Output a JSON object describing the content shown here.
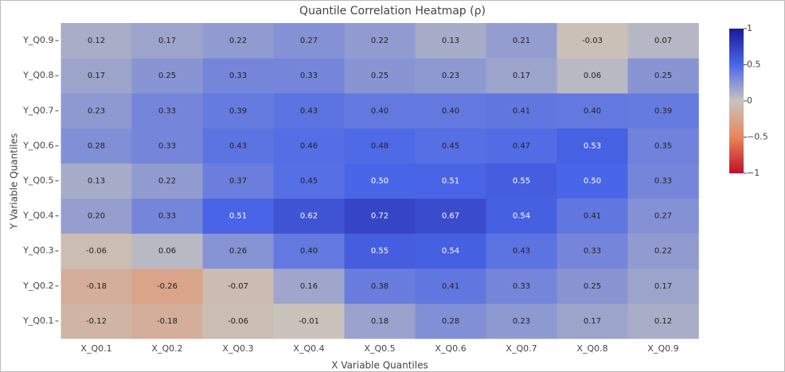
{
  "chart_data": {
    "type": "heatmap",
    "title": "Quantile Correlation Heatmap (ρ)",
    "x_label": "X Variable Quantiles",
    "y_label": "Y Variable Quantiles",
    "x_categories": [
      "X_Q0.1",
      "X_Q0.2",
      "X_Q0.3",
      "X_Q0.4",
      "X_Q0.5",
      "X_Q0.6",
      "X_Q0.7",
      "X_Q0.8",
      "X_Q0.9"
    ],
    "y_categories": [
      "Y_Q0.1",
      "Y_Q0.2",
      "Y_Q0.3",
      "Y_Q0.4",
      "Y_Q0.5",
      "Y_Q0.6",
      "Y_Q0.7",
      "Y_Q0.8",
      "Y_Q0.9"
    ],
    "z": [
      [
        -0.12,
        -0.18,
        -0.06,
        -0.01,
        0.18,
        0.28,
        0.23,
        0.17,
        0.12
      ],
      [
        -0.18,
        -0.26,
        -0.07,
        0.16,
        0.38,
        0.41,
        0.33,
        0.25,
        0.17
      ],
      [
        -0.06,
        0.06,
        0.26,
        0.4,
        0.55,
        0.54,
        0.43,
        0.33,
        0.22
      ],
      [
        0.2,
        0.33,
        0.51,
        0.62,
        0.72,
        0.67,
        0.54,
        0.41,
        0.27
      ],
      [
        0.13,
        0.22,
        0.37,
        0.45,
        0.5,
        0.51,
        0.55,
        0.5,
        0.33
      ],
      [
        0.28,
        0.33,
        0.43,
        0.46,
        0.48,
        0.45,
        0.47,
        0.53,
        0.35
      ],
      [
        0.23,
        0.33,
        0.39,
        0.43,
        0.4,
        0.4,
        0.41,
        0.4,
        0.39
      ],
      [
        0.17,
        0.25,
        0.33,
        0.33,
        0.25,
        0.23,
        0.17,
        0.06,
        0.25
      ],
      [
        0.12,
        0.17,
        0.22,
        0.27,
        0.22,
        0.13,
        0.21,
        -0.03,
        0.07
      ]
    ],
    "value_labels": [
      [
        "-0.12",
        "-0.18",
        "-0.06",
        "-0.01",
        "0.18",
        "0.28",
        "0.23",
        "0.17",
        "0.12"
      ],
      [
        "-0.18",
        "-0.26",
        "-0.07",
        "0.16",
        "0.38",
        "0.41",
        "0.33",
        "0.25",
        "0.17"
      ],
      [
        "-0.06",
        "0.06",
        "0.26",
        "0.40",
        "0.55",
        "0.54",
        "0.43",
        "0.33",
        "0.22"
      ],
      [
        "0.20",
        "0.33",
        "0.51",
        "0.62",
        "0.72",
        "0.67",
        "0.54",
        "0.41",
        "0.27"
      ],
      [
        "0.13",
        "0.22",
        "0.37",
        "0.45",
        "0.50",
        "0.51",
        "0.55",
        "0.50",
        "0.33"
      ],
      [
        "0.28",
        "0.33",
        "0.43",
        "0.46",
        "0.48",
        "0.45",
        "0.47",
        "0.53",
        "0.35"
      ],
      [
        "0.23",
        "0.33",
        "0.39",
        "0.43",
        "0.40",
        "0.40",
        "0.41",
        "0.40",
        "0.39"
      ],
      [
        "0.17",
        "0.25",
        "0.33",
        "0.33",
        "0.25",
        "0.23",
        "0.17",
        "0.06",
        "0.25"
      ],
      [
        "0.12",
        "0.17",
        "0.22",
        "0.27",
        "0.22",
        "0.13",
        "0.21",
        "-0.03",
        "0.07"
      ]
    ],
    "zlim": [
      -1,
      1
    ],
    "colorscale": [
      [
        0,
        "#c0102a"
      ],
      [
        0.25,
        "#e8875a"
      ],
      [
        0.5,
        "#c8c4be"
      ],
      [
        0.75,
        "#4a66e8"
      ],
      [
        1,
        "#1a1a9a"
      ]
    ],
    "colorbar_ticks": [
      1,
      0.5,
      0,
      {
        "value": -0.5,
        "label": "−0.5"
      },
      {
        "value": -1,
        "label": "−1"
      }
    ]
  }
}
